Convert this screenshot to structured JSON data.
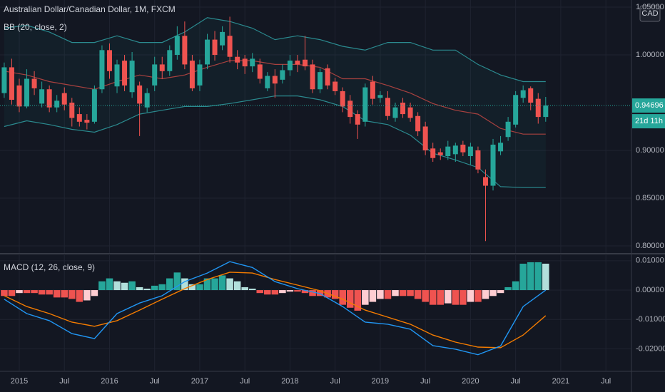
{
  "chart_data": [
    {
      "type": "candlestick",
      "title": "Australian Dollar/Canadian Dollar, 1M, FXCM",
      "indicator": "BB (20, close, 2)",
      "currency": "CAD",
      "countdown": "21d 11h",
      "up_color": "#26a69a",
      "down_color": "#ef5350",
      "x": [
        "2014-11",
        "2014-12",
        "2015-01",
        "2015-02",
        "2015-03",
        "2015-04",
        "2015-05",
        "2015-06",
        "2015-07",
        "2015-08",
        "2015-09",
        "2015-10",
        "2015-11",
        "2015-12",
        "2016-01",
        "2016-02",
        "2016-03",
        "2016-04",
        "2016-05",
        "2016-06",
        "2016-07",
        "2016-08",
        "2016-09",
        "2016-10",
        "2016-11",
        "2016-12",
        "2017-01",
        "2017-02",
        "2017-03",
        "2017-04",
        "2017-05",
        "2017-06",
        "2017-07",
        "2017-08",
        "2017-09",
        "2017-10",
        "2017-11",
        "2017-12",
        "2018-01",
        "2018-02",
        "2018-03",
        "2018-04",
        "2018-05",
        "2018-06",
        "2018-07",
        "2018-08",
        "2018-09",
        "2018-10",
        "2018-11",
        "2018-12",
        "2019-01",
        "2019-02",
        "2019-03",
        "2019-04",
        "2019-05",
        "2019-06",
        "2019-07",
        "2019-08",
        "2019-09",
        "2019-10",
        "2019-11",
        "2019-12",
        "2020-01",
        "2020-02",
        "2020-03",
        "2020-04",
        "2020-05",
        "2020-06",
        "2020-07",
        "2020-08",
        "2020-09",
        "2020-10",
        "2020-11"
      ],
      "open": [
        0.96,
        0.987,
        0.968,
        0.946,
        0.975,
        0.949,
        0.964,
        0.945,
        0.96,
        0.95,
        0.938,
        0.932,
        0.93,
        0.964,
        1.005,
        0.967,
        0.994,
        0.961,
        0.968,
        0.945,
        0.968,
        0.99,
        0.983,
        1.0,
        1.02,
        0.994,
        0.968,
        0.99,
        1.016,
        1.01,
        1.02,
        0.998,
        0.996,
        0.988,
        0.99,
        0.965,
        0.978,
        0.974,
        0.984,
        0.994,
        0.995,
        0.99,
        0.964,
        0.986,
        0.972,
        0.962,
        0.952,
        0.938,
        0.93,
        0.972,
        0.955,
        0.955,
        0.934,
        0.95,
        0.945,
        0.936,
        0.925,
        0.902,
        0.898,
        0.894,
        0.896,
        0.906,
        0.894,
        0.9,
        0.872,
        0.863,
        0.899,
        0.914,
        0.927,
        0.955,
        0.965,
        0.954,
        0.935
      ],
      "high": [
        0.992,
        0.996,
        0.975,
        0.985,
        0.983,
        0.972,
        0.968,
        0.958,
        0.966,
        0.955,
        0.945,
        0.938,
        0.968,
        1.01,
        1.012,
        0.995,
        1.0,
        1.003,
        0.972,
        0.965,
        0.998,
        0.998,
        1.01,
        1.03,
        1.035,
        1.0,
        0.995,
        1.022,
        1.025,
        1.03,
        1.04,
        1.005,
        1.0,
        1.002,
        0.996,
        0.982,
        0.985,
        0.99,
        1.0,
        1.0,
        1.02,
        0.995,
        0.986,
        0.99,
        0.976,
        0.966,
        0.958,
        0.942,
        0.97,
        0.978,
        0.962,
        0.962,
        0.95,
        0.955,
        0.95,
        0.94,
        0.93,
        0.908,
        0.902,
        0.91,
        0.908,
        0.91,
        0.908,
        0.904,
        0.88,
        0.912,
        0.915,
        0.935,
        0.962,
        0.968,
        0.967,
        0.96,
        0.956
      ],
      "low": [
        0.955,
        0.948,
        0.94,
        0.944,
        0.958,
        0.945,
        0.94,
        0.94,
        0.942,
        0.925,
        0.925,
        0.922,
        0.928,
        0.96,
        0.975,
        0.96,
        0.962,
        0.955,
        0.915,
        0.94,
        0.962,
        0.975,
        0.978,
        0.995,
        0.985,
        0.962,
        0.962,
        0.985,
        0.994,
        1.005,
        0.992,
        0.985,
        0.98,
        0.982,
        0.97,
        0.962,
        0.955,
        0.97,
        0.978,
        0.982,
        0.984,
        0.96,
        0.96,
        0.964,
        0.958,
        0.94,
        0.928,
        0.912,
        0.925,
        0.948,
        0.95,
        0.932,
        0.93,
        0.934,
        0.93,
        0.915,
        0.895,
        0.888,
        0.89,
        0.89,
        0.888,
        0.894,
        0.885,
        0.876,
        0.805,
        0.858,
        0.895,
        0.91,
        0.924,
        0.95,
        0.942,
        0.928,
        0.93
      ],
      "close": [
        0.987,
        0.953,
        0.946,
        0.975,
        0.965,
        0.964,
        0.945,
        0.952,
        0.948,
        0.934,
        0.93,
        0.929,
        0.964,
        1.005,
        0.983,
        0.99,
        0.968,
        0.994,
        0.949,
        0.96,
        0.99,
        0.983,
        1.005,
        1.02,
        0.99,
        0.965,
        0.99,
        1.016,
        1.0,
        1.024,
        0.998,
        0.992,
        0.988,
        0.996,
        0.975,
        0.978,
        0.97,
        0.984,
        0.994,
        0.99,
        0.988,
        0.964,
        0.982,
        0.968,
        0.962,
        0.946,
        0.935,
        0.927,
        0.966,
        0.954,
        0.958,
        0.936,
        0.945,
        0.938,
        0.934,
        0.92,
        0.9,
        0.892,
        0.895,
        0.904,
        0.905,
        0.898,
        0.904,
        0.88,
        0.863,
        0.906,
        0.908,
        0.93,
        0.958,
        0.963,
        0.95,
        0.935,
        0.94696
      ],
      "bands": {
        "x": [
          "2014-11",
          "2015-02",
          "2015-05",
          "2015-08",
          "2015-11",
          "2016-02",
          "2016-05",
          "2016-08",
          "2016-11",
          "2017-02",
          "2017-05",
          "2017-08",
          "2017-11",
          "2018-02",
          "2018-05",
          "2018-08",
          "2018-11",
          "2019-02",
          "2019-05",
          "2019-08",
          "2019-11",
          "2020-02",
          "2020-05",
          "2020-08",
          "2020-11"
        ],
        "upper": [
          1.028,
          1.031,
          1.024,
          1.013,
          1.013,
          1.02,
          1.013,
          1.013,
          1.024,
          1.039,
          1.035,
          1.028,
          1.016,
          1.02,
          1.016,
          1.009,
          1.005,
          1.013,
          1.013,
          1.005,
          1.005,
          0.99,
          0.979,
          0.972,
          0.972
        ],
        "basis": [
          0.983,
          0.979,
          0.972,
          0.968,
          0.964,
          0.972,
          0.979,
          0.975,
          0.979,
          0.987,
          0.994,
          0.994,
          0.99,
          0.99,
          0.987,
          0.975,
          0.975,
          0.968,
          0.96,
          0.949,
          0.942,
          0.938,
          0.923,
          0.917,
          0.917
        ],
        "lower": [
          0.925,
          0.931,
          0.927,
          0.922,
          0.919,
          0.927,
          0.938,
          0.942,
          0.946,
          0.946,
          0.949,
          0.953,
          0.957,
          0.957,
          0.953,
          0.946,
          0.931,
          0.927,
          0.916,
          0.897,
          0.89,
          0.882,
          0.862,
          0.861,
          0.861
        ],
        "band_color": "#2b8a8f",
        "basis_color": "#a8413f",
        "fill": "#26a69a"
      },
      "ylim": [
        0.7925,
        1.0575
      ],
      "yticks": [
        {
          "value": 0.8,
          "label": "0.80000"
        },
        {
          "value": 0.85,
          "label": "0.85000"
        },
        {
          "value": 0.9,
          "label": "0.90000"
        },
        {
          "value": 1.0,
          "label": "1.00000"
        },
        {
          "value": 1.05,
          "label": "1.05000"
        }
      ],
      "grid": true
    },
    {
      "type": "macd",
      "title": "MACD (12, 26, close, 9)",
      "x": [
        "2014-11",
        "2014-12",
        "2015-01",
        "2015-02",
        "2015-03",
        "2015-04",
        "2015-05",
        "2015-06",
        "2015-07",
        "2015-08",
        "2015-09",
        "2015-10",
        "2015-11",
        "2015-12",
        "2016-01",
        "2016-02",
        "2016-03",
        "2016-04",
        "2016-05",
        "2016-06",
        "2016-07",
        "2016-08",
        "2016-09",
        "2016-10",
        "2016-11",
        "2016-12",
        "2017-01",
        "2017-02",
        "2017-03",
        "2017-04",
        "2017-05",
        "2017-06",
        "2017-07",
        "2017-08",
        "2017-09",
        "2017-10",
        "2017-11",
        "2017-12",
        "2018-01",
        "2018-02",
        "2018-03",
        "2018-04",
        "2018-05",
        "2018-06",
        "2018-07",
        "2018-08",
        "2018-09",
        "2018-10",
        "2018-11",
        "2018-12",
        "2019-01",
        "2019-02",
        "2019-03",
        "2019-04",
        "2019-05",
        "2019-06",
        "2019-07",
        "2019-08",
        "2019-09",
        "2019-10",
        "2019-11",
        "2019-12",
        "2020-01",
        "2020-02",
        "2020-03",
        "2020-04",
        "2020-05",
        "2020-06",
        "2020-07",
        "2020-08",
        "2020-09",
        "2020-10",
        "2020-11"
      ],
      "histogram": [
        -0.002,
        -0.002,
        -0.001,
        -0.001,
        -0.001,
        -0.0015,
        -0.0015,
        -0.0025,
        -0.0025,
        -0.003,
        -0.004,
        -0.0035,
        -0.002,
        0.003,
        0.004,
        0.003,
        0.0025,
        0.003,
        0.001,
        0.0005,
        0.0015,
        0.002,
        0.004,
        0.006,
        0.004,
        0.002,
        0.002,
        0.004,
        0.004,
        0.005,
        0.004,
        0.003,
        0.001,
        0.0005,
        -0.001,
        -0.0015,
        -0.0015,
        -0.001,
        -0.0005,
        -0.0005,
        -0.001,
        -0.002,
        -0.002,
        -0.0025,
        -0.003,
        -0.005,
        -0.006,
        -0.007,
        -0.005,
        -0.004,
        -0.003,
        -0.003,
        -0.002,
        -0.002,
        -0.002,
        -0.003,
        -0.004,
        -0.005,
        -0.005,
        -0.0045,
        -0.005,
        -0.005,
        -0.004,
        -0.004,
        -0.003,
        -0.002,
        -0.001,
        0.001,
        0.003,
        0.009,
        0.0095,
        0.0095,
        0.009
      ],
      "histogram_colors": [
        "#26a69a",
        "#b2dfdb",
        "#ffcdd2",
        "#ef5350"
      ],
      "macd_line": {
        "x": [
          "2014-11",
          "2015-02",
          "2015-05",
          "2015-08",
          "2015-11",
          "2016-02",
          "2016-05",
          "2016-08",
          "2016-11",
          "2017-02",
          "2017-05",
          "2017-08",
          "2017-11",
          "2018-02",
          "2018-05",
          "2018-08",
          "2018-11",
          "2019-02",
          "2019-05",
          "2019-08",
          "2019-11",
          "2020-02",
          "2020-05",
          "2020-08",
          "2020-11"
        ],
        "values": [
          -0.0031,
          -0.008,
          -0.0104,
          -0.0148,
          -0.0165,
          -0.008,
          -0.0044,
          -0.0019,
          0.0029,
          0.0058,
          0.0097,
          0.0077,
          0.0029,
          0.0005,
          -0.0012,
          -0.0056,
          -0.0109,
          -0.0116,
          -0.0133,
          -0.0189,
          -0.0201,
          -0.022,
          -0.019,
          -0.0056,
          0.0
        ],
        "color": "#2196f3"
      },
      "signal_line": {
        "x": [
          "2014-11",
          "2015-02",
          "2015-05",
          "2015-08",
          "2015-11",
          "2016-02",
          "2016-05",
          "2016-08",
          "2016-11",
          "2017-02",
          "2017-05",
          "2017-08",
          "2017-11",
          "2018-02",
          "2018-05",
          "2018-08",
          "2018-11",
          "2019-02",
          "2019-05",
          "2019-08",
          "2019-11",
          "2020-02",
          "2020-05",
          "2020-08",
          "2020-11"
        ],
        "values": [
          -0.0019,
          -0.0056,
          -0.008,
          -0.0109,
          -0.0123,
          -0.0104,
          -0.0068,
          -0.0031,
          0.0005,
          0.0036,
          0.0061,
          0.0058,
          0.0036,
          0.0017,
          -0.0002,
          -0.0031,
          -0.0068,
          -0.0092,
          -0.0116,
          -0.0153,
          -0.0177,
          -0.0194,
          -0.0196,
          -0.0153,
          -0.0087
        ],
        "color": "#f57c00"
      },
      "ylim": [
        -0.0274,
        0.0119
      ],
      "yticks": [
        {
          "value": -0.02,
          "label": "-0.02000"
        },
        {
          "value": -0.01,
          "label": "-0.01000"
        },
        {
          "value": 0,
          "label": "0.00000"
        },
        {
          "value": 0.01,
          "label": "0.01000"
        }
      ],
      "xticks": [
        {
          "value": "2015-01",
          "label": "2015"
        },
        {
          "value": "2015-07",
          "label": "Jul"
        },
        {
          "value": "2016-01",
          "label": "2016"
        },
        {
          "value": "2016-07",
          "label": "Jul"
        },
        {
          "value": "2017-01",
          "label": "2017"
        },
        {
          "value": "2017-07",
          "label": "Jul"
        },
        {
          "value": "2018-01",
          "label": "2018"
        },
        {
          "value": "2018-07",
          "label": "Jul"
        },
        {
          "value": "2019-01",
          "label": "2019"
        },
        {
          "value": "2019-07",
          "label": "Jul"
        },
        {
          "value": "2020-01",
          "label": "2020"
        },
        {
          "value": "2020-07",
          "label": "Jul"
        },
        {
          "value": "2021-01",
          "label": "2021"
        },
        {
          "value": "2021-07",
          "label": "Jul"
        }
      ],
      "grid": true
    }
  ]
}
